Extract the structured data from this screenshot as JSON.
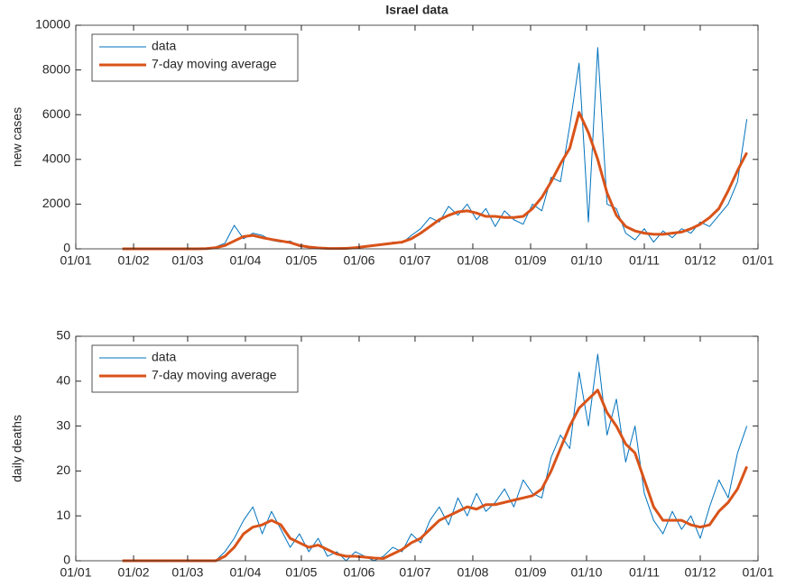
{
  "chart_data": [
    {
      "type": "line",
      "title": "Israel data",
      "ylabel": "new cases",
      "x": [
        25,
        30,
        35,
        40,
        45,
        50,
        55,
        60,
        65,
        70,
        75,
        80,
        85,
        90,
        95,
        100,
        105,
        110,
        115,
        120,
        125,
        130,
        135,
        140,
        145,
        150,
        155,
        160,
        165,
        170,
        175,
        180,
        185,
        190,
        195,
        200,
        205,
        210,
        215,
        220,
        225,
        230,
        235,
        240,
        245,
        250,
        255,
        260,
        265,
        270,
        275,
        280,
        285,
        290,
        295,
        300,
        305,
        310,
        315,
        320,
        325,
        330,
        335,
        340,
        345,
        350,
        355,
        360
      ],
      "series": [
        {
          "name": "data",
          "color": "#0072bd",
          "values": [
            0,
            0,
            0,
            0,
            0,
            0,
            0,
            0,
            0,
            20,
            80,
            250,
            1050,
            450,
            700,
            600,
            380,
            300,
            350,
            100,
            60,
            30,
            10,
            20,
            30,
            40,
            120,
            180,
            160,
            300,
            250,
            600,
            900,
            1400,
            1200,
            1900,
            1500,
            2000,
            1300,
            1800,
            1000,
            1700,
            1300,
            1100,
            2000,
            1700,
            3200,
            3000,
            5500,
            8300,
            1200,
            9000,
            2000,
            1800,
            700,
            400,
            900,
            300,
            800,
            500,
            900,
            700,
            1200,
            1000,
            1500,
            2000,
            3000,
            5800
          ]
        },
        {
          "name": "7-day moving average",
          "color": "#d95319",
          "values": [
            0,
            0,
            0,
            0,
            0,
            0,
            0,
            0,
            0,
            10,
            50,
            150,
            350,
            550,
            600,
            500,
            420,
            350,
            280,
            150,
            80,
            40,
            20,
            15,
            20,
            50,
            100,
            150,
            200,
            250,
            300,
            450,
            700,
            1000,
            1300,
            1500,
            1650,
            1700,
            1600,
            1450,
            1450,
            1400,
            1400,
            1450,
            1800,
            2300,
            3000,
            3800,
            4500,
            6100,
            5200,
            4000,
            2500,
            1500,
            1000,
            800,
            700,
            650,
            650,
            700,
            750,
            900,
            1100,
            1400,
            1800,
            2600,
            3500,
            4300
          ]
        }
      ],
      "xlim": [
        0,
        366
      ],
      "xticks": [
        {
          "value": 0,
          "label": "01/01"
        },
        {
          "value": 31,
          "label": "01/02"
        },
        {
          "value": 60,
          "label": "01/03"
        },
        {
          "value": 91,
          "label": "01/04"
        },
        {
          "value": 121,
          "label": "01/05"
        },
        {
          "value": 152,
          "label": "01/06"
        },
        {
          "value": 182,
          "label": "01/07"
        },
        {
          "value": 213,
          "label": "01/08"
        },
        {
          "value": 244,
          "label": "01/09"
        },
        {
          "value": 274,
          "label": "01/10"
        },
        {
          "value": 305,
          "label": "01/11"
        },
        {
          "value": 335,
          "label": "01/12"
        },
        {
          "value": 366,
          "label": "01/01"
        }
      ],
      "ylim": [
        0,
        10000
      ],
      "yticks": [
        0,
        2000,
        4000,
        6000,
        8000,
        10000
      ],
      "legend": "upper left"
    },
    {
      "type": "line",
      "ylabel": "daily deaths",
      "x": [
        25,
        30,
        35,
        40,
        45,
        50,
        55,
        60,
        65,
        70,
        75,
        80,
        85,
        90,
        95,
        100,
        105,
        110,
        115,
        120,
        125,
        130,
        135,
        140,
        145,
        150,
        155,
        160,
        165,
        170,
        175,
        180,
        185,
        190,
        195,
        200,
        205,
        210,
        215,
        220,
        225,
        230,
        235,
        240,
        245,
        250,
        255,
        260,
        265,
        270,
        275,
        280,
        285,
        290,
        295,
        300,
        305,
        310,
        315,
        320,
        325,
        330,
        335,
        340,
        345,
        350,
        355,
        360
      ],
      "series": [
        {
          "name": "data",
          "color": "#0072bd",
          "values": [
            0,
            0,
            0,
            0,
            0,
            0,
            0,
            0,
            0,
            0,
            0,
            2,
            5,
            9,
            12,
            6,
            11,
            7,
            3,
            6,
            2,
            5,
            1,
            2,
            0,
            2,
            1,
            0,
            1,
            3,
            2,
            6,
            4,
            9,
            12,
            8,
            14,
            10,
            15,
            11,
            13,
            16,
            12,
            18,
            15,
            14,
            23,
            28,
            25,
            42,
            30,
            46,
            28,
            36,
            22,
            30,
            15,
            9,
            6,
            11,
            7,
            10,
            5,
            12,
            18,
            14,
            24,
            30
          ]
        },
        {
          "name": "7-day moving average",
          "color": "#d95319",
          "values": [
            0,
            0,
            0,
            0,
            0,
            0,
            0,
            0,
            0,
            0,
            0,
            1,
            3,
            6,
            7.5,
            8,
            9,
            8,
            5,
            4,
            3,
            3.5,
            2.5,
            1.5,
            1,
            1,
            0.8,
            0.6,
            0.5,
            1.5,
            2.5,
            4,
            5,
            7,
            9,
            10,
            11,
            12,
            11.5,
            12.5,
            12.5,
            13,
            13.5,
            14,
            14.5,
            16,
            20,
            25,
            30,
            34,
            36,
            38,
            33,
            30,
            26,
            24,
            18,
            12,
            9,
            9,
            9,
            8,
            7.5,
            8,
            11,
            13,
            16,
            21
          ]
        }
      ],
      "xlim": [
        0,
        366
      ],
      "xticks": [
        {
          "value": 0,
          "label": "01/01"
        },
        {
          "value": 31,
          "label": "01/02"
        },
        {
          "value": 60,
          "label": "01/03"
        },
        {
          "value": 91,
          "label": "01/04"
        },
        {
          "value": 121,
          "label": "01/05"
        },
        {
          "value": 152,
          "label": "01/06"
        },
        {
          "value": 182,
          "label": "01/07"
        },
        {
          "value": 213,
          "label": "01/08"
        },
        {
          "value": 244,
          "label": "01/09"
        },
        {
          "value": 274,
          "label": "01/10"
        },
        {
          "value": 305,
          "label": "01/11"
        },
        {
          "value": 335,
          "label": "01/12"
        },
        {
          "value": 366,
          "label": "01/01"
        }
      ],
      "ylim": [
        0,
        50
      ],
      "yticks": [
        0,
        10,
        20,
        30,
        40,
        50
      ],
      "legend": "upper left"
    }
  ]
}
